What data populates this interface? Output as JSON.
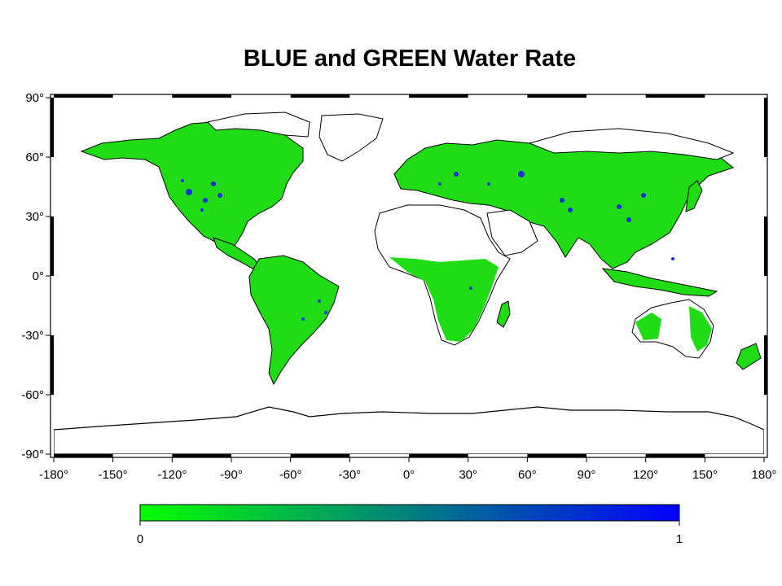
{
  "title": "BLUE and GREEN Water Rate",
  "map": {
    "projection": "cylindrical-equidistant",
    "lon_range": [
      -180,
      180
    ],
    "lat_range": [
      -90,
      90
    ],
    "lon_ticks": [
      "-180°",
      "-150°",
      "-120°",
      "-90°",
      "-60°",
      "-30°",
      "0°",
      "30°",
      "60°",
      "90°",
      "120°",
      "150°",
      "180°"
    ],
    "lat_ticks": [
      "90°",
      "60°",
      "30°",
      "0°",
      "-30°",
      "-60°",
      "-90°"
    ],
    "coastline_color": "#000000",
    "field_colors": {
      "low": "#00ff00",
      "high": "#0000ff"
    }
  },
  "colorbar": {
    "min_label": "0",
    "max_label": "1",
    "colors": [
      "#00ff00",
      "#0000ff"
    ]
  }
}
